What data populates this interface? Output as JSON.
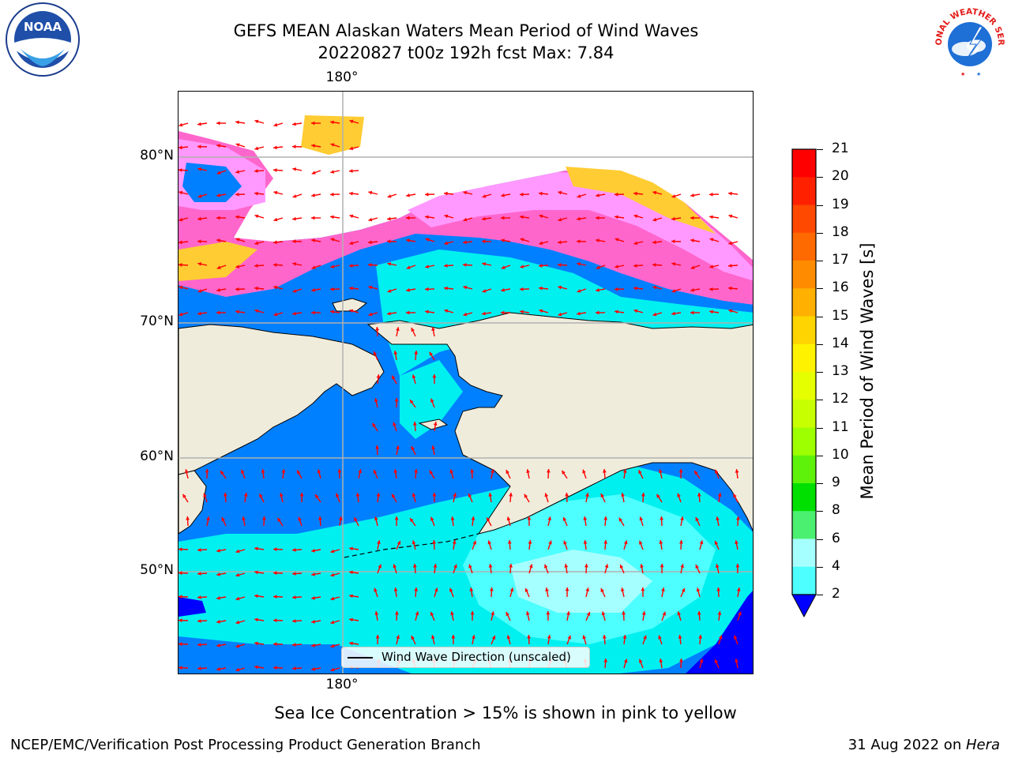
{
  "title": {
    "line1": "GEFS MEAN Alaskan Waters Mean Period of Wind Waves",
    "line2": "20220827 t00z 192h fcst   Max: 7.84"
  },
  "map": {
    "lat_labels": [
      "80°N",
      "70°N",
      "60°N",
      "50°N"
    ],
    "lon_label_top": "180°",
    "lon_label_bottom": "180°",
    "legend": "Wind Wave Direction (unscaled)",
    "land_color": "#efecdc",
    "arrow_color": "#ff0000",
    "sea_ice_colors": [
      "#ff66cc",
      "#ff99ff",
      "#ffcc33"
    ]
  },
  "colorbar": {
    "label": "Mean Period of Wind Waves [s]",
    "ticks": [
      "21",
      "20",
      "19",
      "18",
      "17",
      "16",
      "15",
      "14",
      "13",
      "12",
      "11",
      "10",
      "9",
      "8",
      "6",
      "4",
      "2"
    ],
    "colors": [
      "#ff0000",
      "#ff2000",
      "#ff4800",
      "#ff6a00",
      "#ff8c00",
      "#ffb000",
      "#ffd400",
      "#fff200",
      "#e6ff00",
      "#c8ff00",
      "#9eff00",
      "#5ef20a",
      "#00e000",
      "#4cf070",
      "#a6ffff",
      "#4dffff",
      "#00f0f0",
      "#0080ff"
    ],
    "extend_color": "#0000ff"
  },
  "caption": "Sea Ice Concentration > 15% is shown in pink to yellow",
  "credits": {
    "left": "NCEP/EMC/Verification Post Processing Product Generation Branch",
    "right_date": "31 Aug 2022 on ",
    "right_machine": "Hera"
  },
  "logos": {
    "noaa": "NOAA",
    "nws": "NATIONAL WEATHER SERVICE"
  }
}
